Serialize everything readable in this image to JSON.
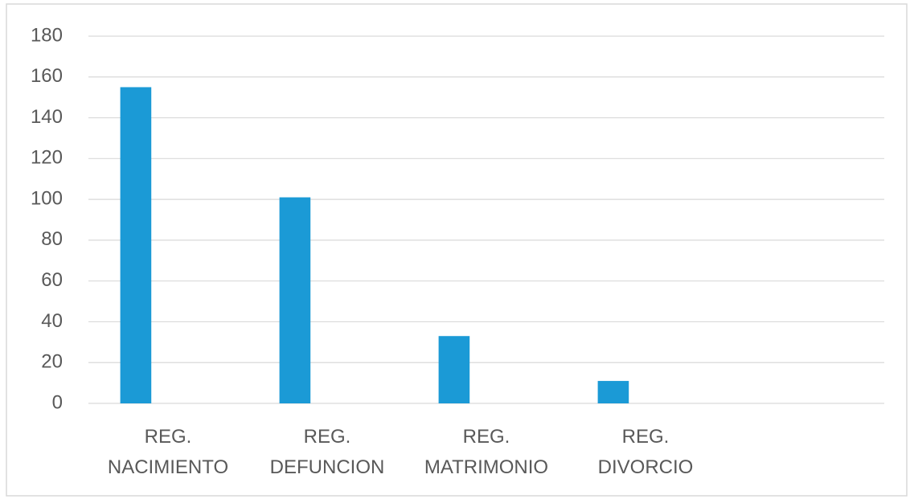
{
  "chart_data": {
    "type": "bar",
    "categories": [
      "REG. NACIMIENTO",
      "REG. DEFUNCION",
      "REG. MATRIMONIO",
      "REG. DIVORCIO",
      null
    ],
    "values": [
      155,
      101,
      33,
      11,
      null
    ],
    "color": "#1b9ad6",
    "ylim": [
      0,
      180
    ],
    "yticks": [
      0,
      20,
      40,
      60,
      80,
      100,
      120,
      140,
      160,
      180
    ],
    "grid": true
  }
}
